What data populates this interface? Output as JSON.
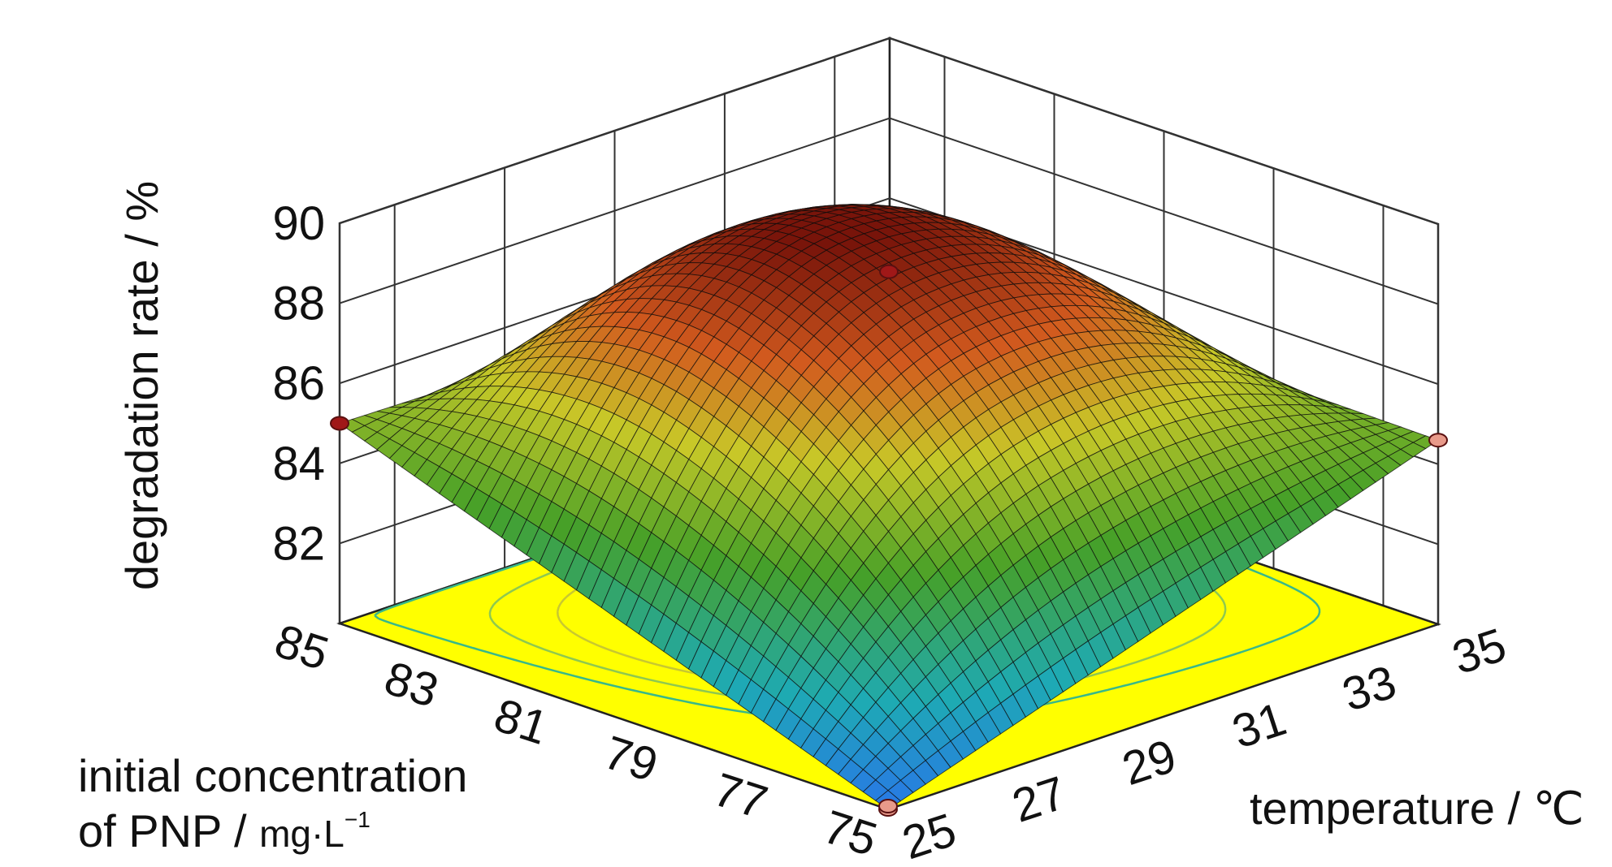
{
  "chart_data": {
    "type": "surface",
    "title": "",
    "zlabel": "degradation rate / %",
    "xlabel_line1": "initial concentration",
    "xlabel_line2_main": "of PNP / ",
    "xlabel_unit": "mg·L",
    "xlabel_exp": "−1",
    "ylabel": "temperature / ℃",
    "x_name": "initial concentration of PNP",
    "y_name": "temperature",
    "x_ticks": [
      "85",
      "83",
      "81",
      "79",
      "77",
      "75"
    ],
    "x_tick_values": [
      85,
      83,
      81,
      79,
      77,
      75
    ],
    "y_ticks": [
      "25",
      "27",
      "29",
      "31",
      "33",
      "35"
    ],
    "y_tick_values": [
      25,
      27,
      29,
      31,
      33,
      35
    ],
    "z_ticks": [
      "82",
      "84",
      "86",
      "88",
      "90"
    ],
    "z_tick_values": [
      82,
      84,
      86,
      88,
      90
    ],
    "xlim": [
      75,
      85
    ],
    "ylim": [
      25,
      35
    ],
    "zlim": [
      80,
      90
    ],
    "surface": {
      "corners": [
        {
          "x": 85,
          "y": 25,
          "z": 85.0
        },
        {
          "x": 75,
          "y": 25,
          "z": 80.0
        },
        {
          "x": 75,
          "y": 35,
          "z": 84.6
        },
        {
          "x": 85,
          "y": 35,
          "z": 84.8
        }
      ],
      "peak": {
        "x": 80.5,
        "y": 29.5,
        "z": 89.5
      }
    },
    "design_points": [
      {
        "x": 85,
        "y": 25,
        "z": 85.0,
        "color": "#a01818"
      },
      {
        "x": 75,
        "y": 25,
        "z": 80.0,
        "color": "#e89a8a"
      },
      {
        "x": 75,
        "y": 35,
        "z": 84.6,
        "color": "#e89a8a"
      },
      {
        "x": 80,
        "y": 30,
        "z": 88.8,
        "color": "#a01818"
      }
    ],
    "contour_levels": [
      88.8,
      88.0,
      87.0,
      86.0,
      85.0
    ],
    "contour_colors": [
      "#d23b2a",
      "#e8a030",
      "#c8c830",
      "#8ec850",
      "#38b88a"
    ],
    "floor_color": "#ffff00",
    "grid": true
  }
}
